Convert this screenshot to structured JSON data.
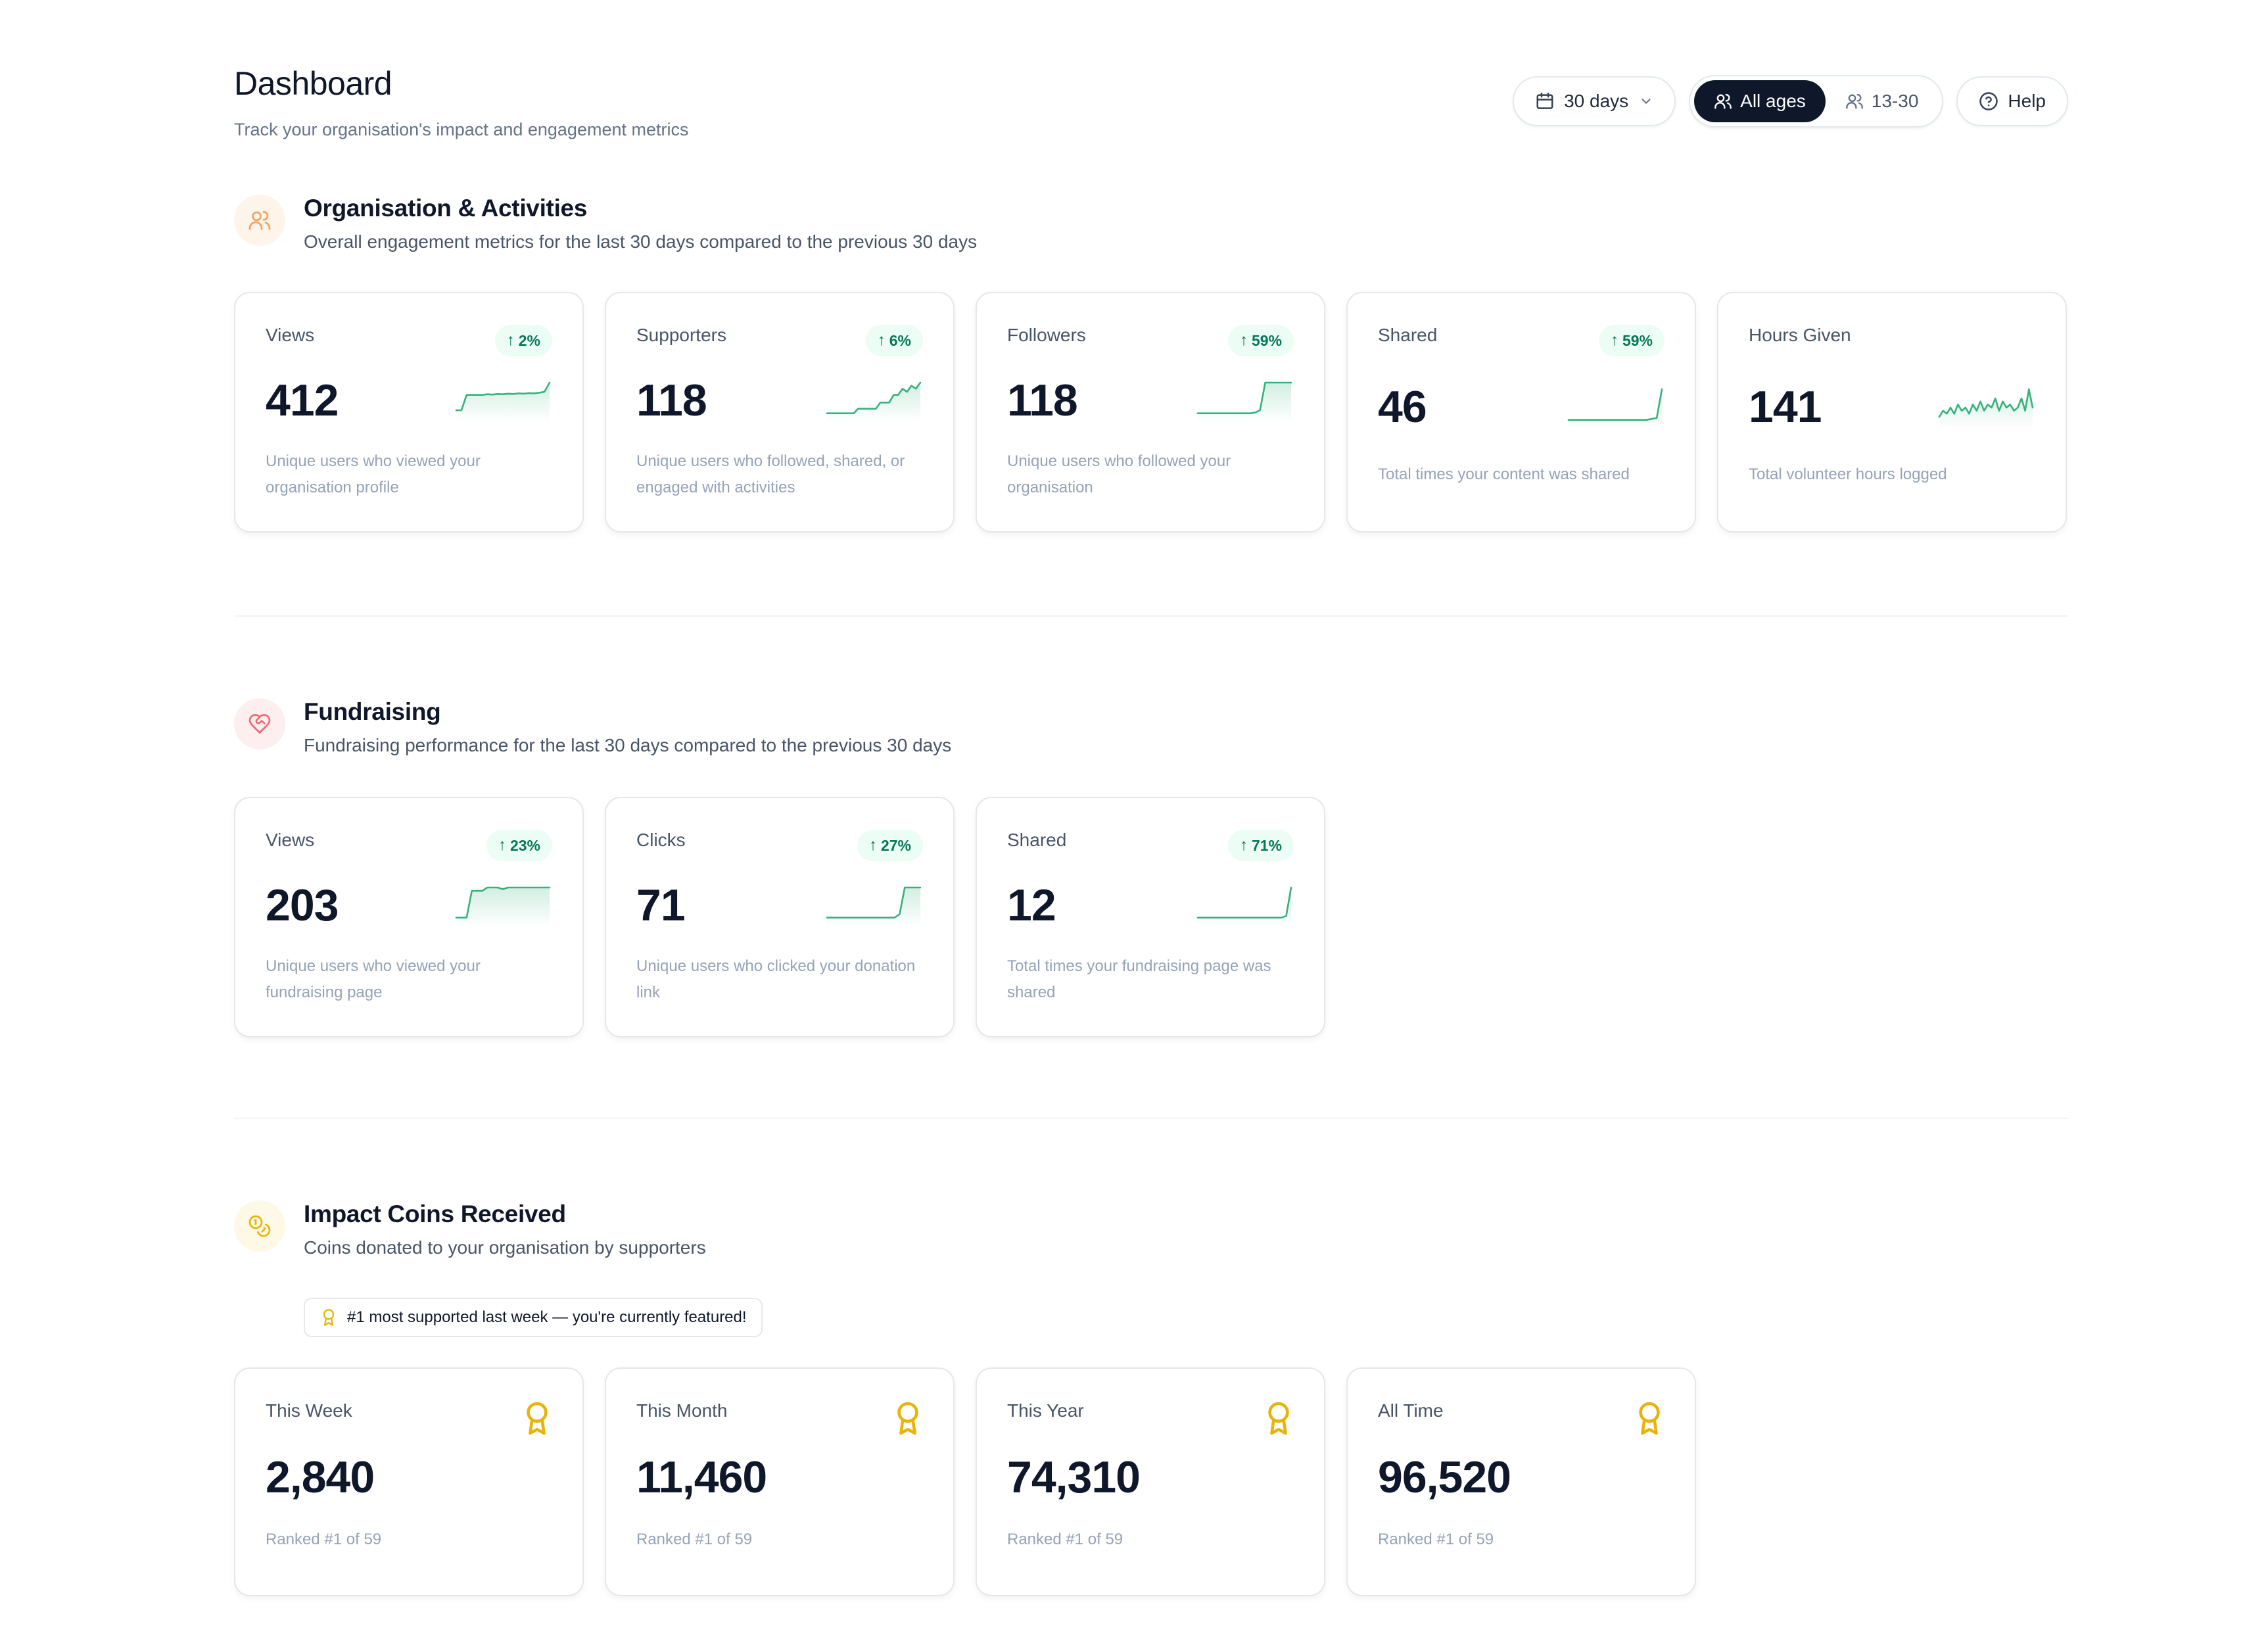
{
  "header": {
    "title": "Dashboard",
    "subtitle": "Track your organisation's impact and engagement metrics",
    "range_label": "30 days",
    "age_filters": [
      "All ages",
      "13-30"
    ],
    "help_label": "Help"
  },
  "colors": {
    "accent_dark": "#0f172a",
    "positive": "#047857",
    "positive_bg": "#ecfdf5",
    "spark_line": "#34b27d",
    "gold": "#eab308",
    "org_icon": "#f4a261",
    "fund_icon": "#ef6b73"
  },
  "organisation": {
    "title": "Organisation & Activities",
    "subtitle": "Overall engagement metrics for the last 30 days compared to the previous 30 days",
    "icon": "users-icon",
    "cards": [
      {
        "label": "Views",
        "value": "412",
        "change": "2%",
        "desc": "Unique users who viewed your organisation profile",
        "trend": [
          3,
          3,
          8,
          8,
          8,
          8,
          8.2,
          8.1,
          8.3,
          8.2,
          8.4,
          8.3,
          8.5,
          8.4,
          8.6,
          8.5,
          8.7,
          9,
          12
        ]
      },
      {
        "label": "Supporters",
        "value": "118",
        "change": "6%",
        "desc": "Unique users who followed, shared, or engaged with activities",
        "trend": [
          2,
          2,
          2,
          2,
          2,
          2,
          2,
          3.5,
          3.5,
          3.5,
          3.5,
          3.5,
          5.5,
          5.5,
          5.5,
          8,
          8,
          10,
          9,
          11,
          10,
          12
        ]
      },
      {
        "label": "Followers",
        "value": "118",
        "change": "59%",
        "desc": "Unique users who followed your organisation",
        "trend": [
          2,
          2,
          2,
          2,
          2,
          2,
          2,
          2,
          2,
          2,
          2,
          2.2,
          3,
          12,
          12,
          12,
          12,
          12,
          12
        ]
      },
      {
        "label": "Shared",
        "value": "46",
        "change": "59%",
        "desc": "Total times your content was shared",
        "trend": [
          2,
          2,
          2,
          2,
          2,
          2,
          2,
          2,
          2,
          2,
          2,
          2,
          2,
          2,
          2,
          2,
          2.3,
          2.6,
          12
        ]
      },
      {
        "label": "Hours Given",
        "value": "141",
        "change": "",
        "desc": "Total volunteer hours logged",
        "trend": [
          3,
          5,
          4,
          6,
          4,
          7,
          5,
          6,
          4,
          7,
          5,
          8,
          5,
          7,
          6,
          9,
          5,
          8,
          6,
          7,
          5,
          6,
          9,
          5,
          12,
          6
        ]
      }
    ]
  },
  "fundraising": {
    "title": "Fundraising",
    "subtitle": "Fundraising performance for the last 30 days compared to the previous 30 days",
    "icon": "heart-handshake-icon",
    "cards": [
      {
        "label": "Views",
        "value": "203",
        "change": "23%",
        "desc": "Unique users who viewed your fundraising page",
        "trend": [
          2,
          2,
          2,
          10,
          10,
          10,
          11,
          11,
          11,
          10.5,
          11,
          11,
          11,
          11,
          11,
          11,
          11,
          11,
          11
        ]
      },
      {
        "label": "Clicks",
        "value": "71",
        "change": "27%",
        "desc": "Unique users who clicked your donation link",
        "trend": [
          2,
          2,
          2,
          2,
          2,
          2,
          2,
          2,
          2,
          2,
          2,
          2,
          2,
          2,
          3,
          11,
          11,
          11,
          11
        ]
      },
      {
        "label": "Shared",
        "value": "12",
        "change": "71%",
        "desc": "Total times your fundraising page was shared",
        "trend": [
          2,
          2,
          2,
          2,
          2,
          2,
          2,
          2,
          2,
          2,
          2,
          2,
          2,
          2,
          2,
          2,
          2,
          2,
          2.5,
          11
        ]
      }
    ]
  },
  "coins": {
    "title": "Impact Coins Received",
    "subtitle": "Coins donated to your organisation by supporters",
    "icon": "coins-icon",
    "feature_text": "#1 most supported last week — you're currently featured!",
    "cards": [
      {
        "label": "This Week",
        "value": "2,840",
        "desc": "Ranked #1 of 59"
      },
      {
        "label": "This Month",
        "value": "11,460",
        "desc": "Ranked #1 of 59"
      },
      {
        "label": "This Year",
        "value": "74,310",
        "desc": "Ranked #1 of 59"
      },
      {
        "label": "All Time",
        "value": "96,520",
        "desc": "Ranked #1 of 59"
      }
    ]
  }
}
